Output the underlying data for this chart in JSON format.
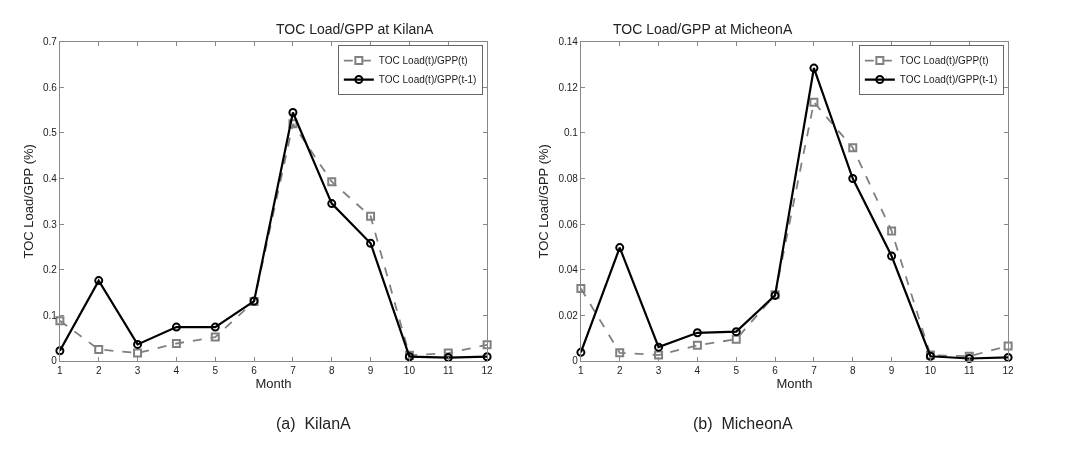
{
  "chart_data": [
    {
      "type": "line",
      "title": "TOC Load/GPP at KilanA",
      "xlabel": "Month",
      "ylabel": "TOC Load/GPP (%)",
      "annotations": [
        "(a)  KilanA"
      ],
      "x": [
        1,
        2,
        3,
        4,
        5,
        6,
        7,
        8,
        9,
        10,
        11,
        12
      ],
      "xlim": [
        1,
        12
      ],
      "xticks": [
        1,
        2,
        3,
        4,
        5,
        6,
        7,
        8,
        9,
        10,
        11,
        12
      ],
      "ylim": [
        0,
        0.7
      ],
      "yticks": [
        0,
        0.1,
        0.2,
        0.3,
        0.4,
        0.5,
        0.6,
        0.7
      ],
      "legend": "top right",
      "series": [
        {
          "name": "TOC Load(t)/GPP(t)",
          "color": "#808080",
          "marker": "square",
          "line_style": "dashed",
          "values": [
            0.088,
            0.025,
            0.017,
            0.038,
            0.052,
            0.13,
            0.52,
            0.393,
            0.317,
            0.012,
            0.017,
            0.035
          ]
        },
        {
          "name": "TOC Load(t)/GPP(t-1)",
          "color": "#000000",
          "marker": "circle",
          "line_style": "solid",
          "values": [
            0.022,
            0.176,
            0.036,
            0.074,
            0.074,
            0.131,
            0.545,
            0.345,
            0.258,
            0.009,
            0.007,
            0.009
          ]
        }
      ]
    },
    {
      "type": "line",
      "title": "TOC Load/GPP at MicheonA",
      "xlabel": "Month",
      "ylabel": "TOC Load/GPP (%)",
      "annotations": [
        "(b)  MicheonA"
      ],
      "x": [
        1,
        2,
        3,
        4,
        5,
        6,
        7,
        8,
        9,
        10,
        11,
        12
      ],
      "xlim": [
        1,
        12
      ],
      "xticks": [
        1,
        2,
        3,
        4,
        5,
        6,
        7,
        8,
        9,
        10,
        11,
        12
      ],
      "ylim": [
        0,
        0.14
      ],
      "yticks": [
        0,
        0.02,
        0.04,
        0.06,
        0.08,
        0.1,
        0.12,
        0.14
      ],
      "legend": "top right",
      "series": [
        {
          "name": "TOC Load(t)/GPP(t)",
          "color": "#808080",
          "marker": "square",
          "line_style": "dashed",
          "values": [
            0.0317,
            0.0035,
            0.0025,
            0.0068,
            0.0095,
            0.029,
            0.1135,
            0.0935,
            0.057,
            0.0025,
            0.002,
            0.0065
          ]
        },
        {
          "name": "TOC Load(t)/GPP(t-1)",
          "color": "#000000",
          "marker": "circle",
          "line_style": "solid",
          "values": [
            0.0037,
            0.0497,
            0.006,
            0.0123,
            0.0128,
            0.0287,
            0.1285,
            0.08,
            0.046,
            0.002,
            0.001,
            0.0015
          ]
        }
      ]
    }
  ]
}
